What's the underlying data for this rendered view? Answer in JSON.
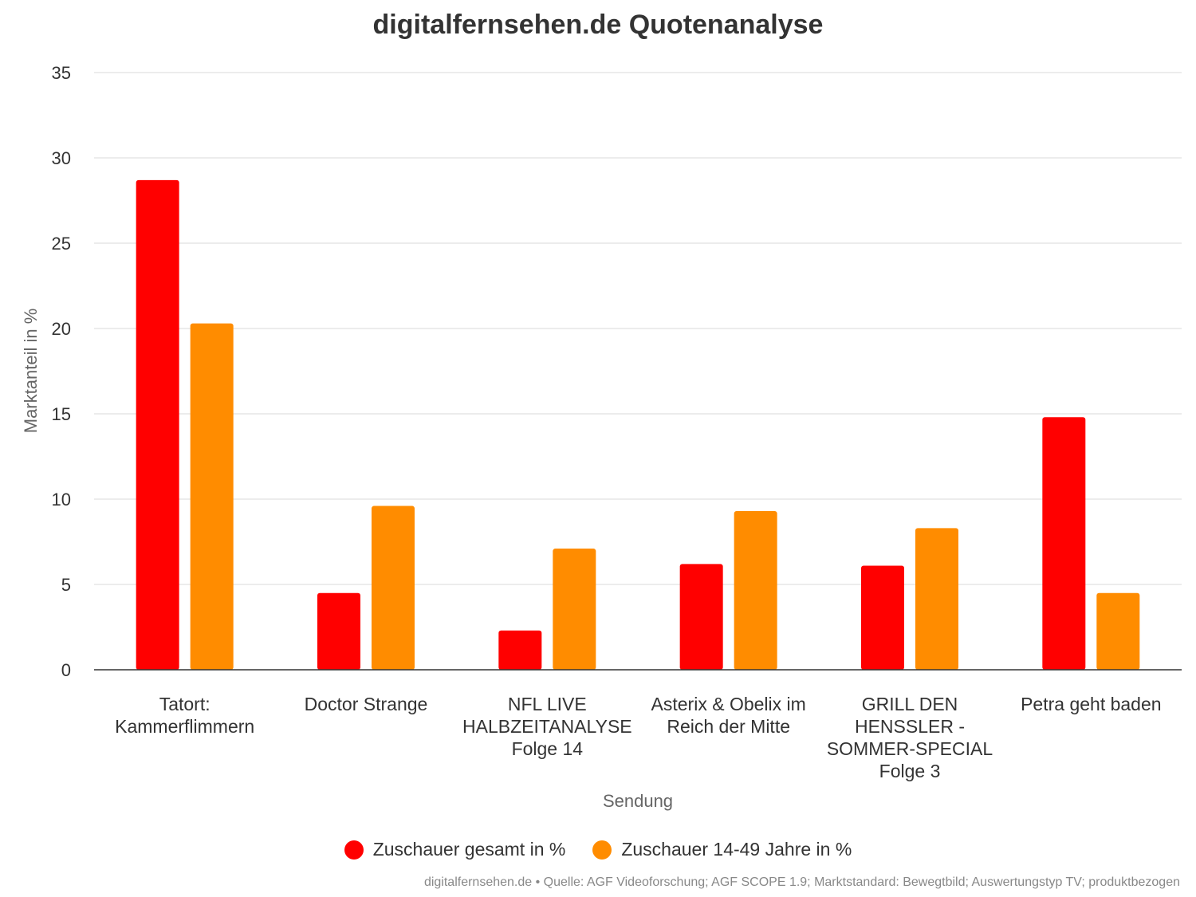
{
  "chart_data": {
    "type": "bar",
    "title": "digitalfernsehen.de Quotenanalyse",
    "xlabel": "Sendung",
    "ylabel": "Marktanteil in %",
    "ylim": [
      0,
      35
    ],
    "yticks": [
      "0",
      "5",
      "10",
      "15",
      "20",
      "25",
      "30",
      "35"
    ],
    "grid": true,
    "legend_position": "bottom",
    "categories": [
      [
        "Tatort:",
        "Kammerflimmern"
      ],
      [
        "Doctor Strange"
      ],
      [
        "NFL LIVE",
        "HALBZEITANALYSE",
        "Folge 14"
      ],
      [
        "Asterix & Obelix im",
        "Reich der Mitte"
      ],
      [
        "GRILL DEN",
        "HENSSLER -",
        "SOMMER-SPECIAL",
        "Folge 3"
      ],
      [
        "Petra geht baden"
      ]
    ],
    "series": [
      {
        "name": "Zuschauer gesamt in %",
        "color": "#ff0000",
        "values": [
          28.7,
          4.5,
          2.3,
          6.2,
          6.1,
          14.8
        ]
      },
      {
        "name": "Zuschauer 14-49 Jahre in %",
        "color": "#ff8c00",
        "values": [
          20.3,
          9.6,
          7.1,
          9.3,
          8.3,
          4.5
        ]
      }
    ],
    "source": "digitalfernsehen.de • Quelle: AGF Videoforschung; AGF SCOPE 1.9; Marktstandard: Bewegtbild; Auswertungstyp TV; produktbezogen"
  }
}
